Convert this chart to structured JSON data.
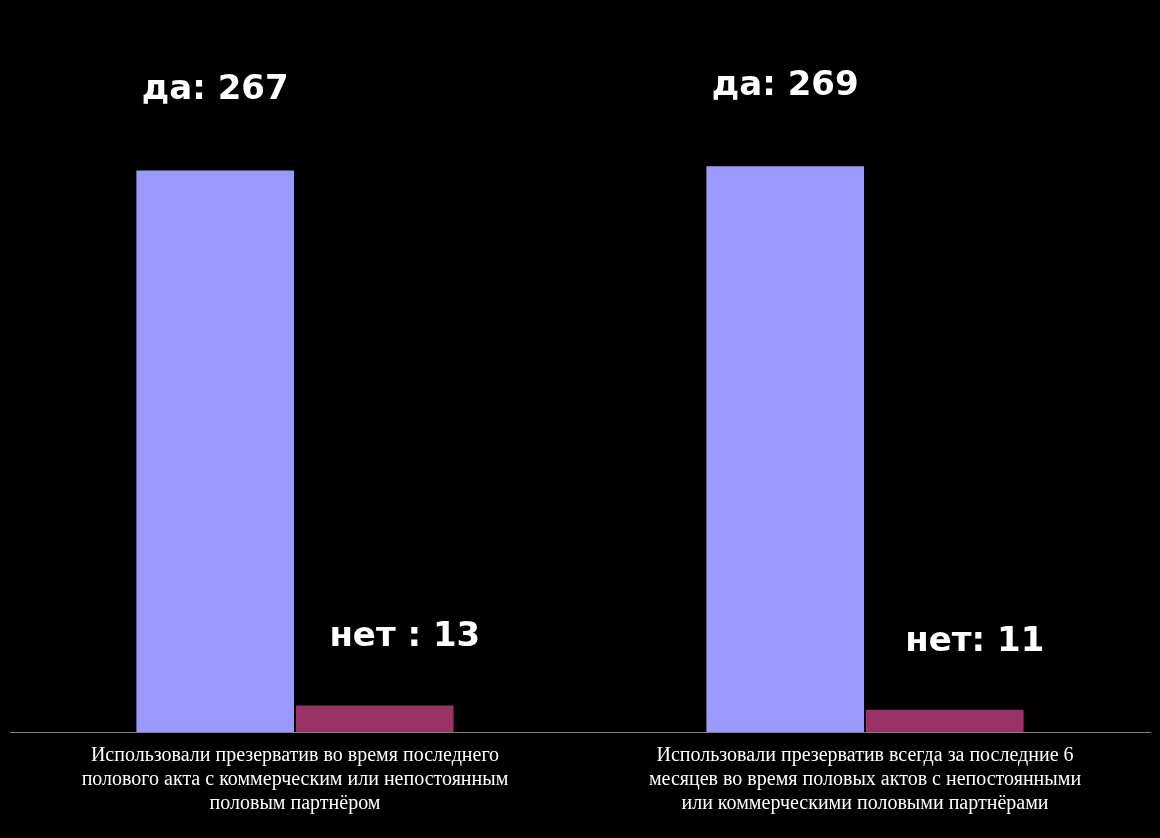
{
  "chart_data": {
    "type": "bar",
    "categories": [
      "Использовали презерватив во время последнего полового акта с коммерческим или непостоянным половым партнёром",
      "Использовали презерватив всегда за последние 6 месяцев во время половых актов с непостоянными или коммерческими половыми партнёрами"
    ],
    "series": [
      {
        "color": "#9999ff",
        "values": [
          267,
          269
        ],
        "value_labels": [
          "да: 267",
          "да: 269"
        ]
      },
      {
        "color": "#993366",
        "values": [
          13,
          11
        ],
        "value_labels": [
          "нет : 13",
          "нет: 11"
        ]
      }
    ]
  }
}
